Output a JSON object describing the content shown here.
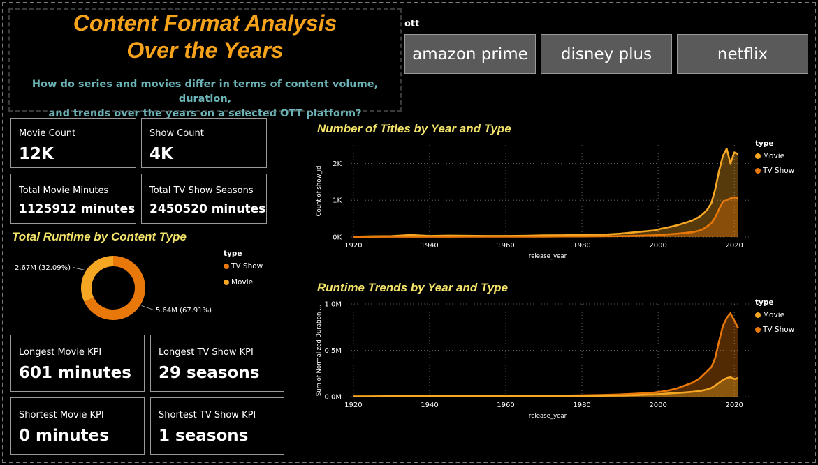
{
  "header": {
    "title_line1": "Content Format Analysis",
    "title_line2": "Over the Years",
    "subtitle_line1": "How do series and movies differ in terms of content volume, duration,",
    "subtitle_line2": "and trends over the years on a selected OTT platform?"
  },
  "ott_slicer": {
    "label": "ott",
    "options": [
      "amazon prime",
      "disney plus",
      "netflix"
    ]
  },
  "kpis": {
    "movie_count": {
      "label": "Movie Count",
      "value": "12K"
    },
    "show_count": {
      "label": "Show Count",
      "value": "4K"
    },
    "total_movie_minutes": {
      "label": "Total Movie Minutes",
      "value": "1125912 minutes"
    },
    "total_tv_show_seasons": {
      "label": "Total TV Show Seasons",
      "value": "2450520 minutes"
    },
    "longest_movie": {
      "label": "Longest Movie KPI",
      "value": "601 minutes"
    },
    "longest_tv_show": {
      "label": "Longest TV Show KPI",
      "value": "29 seasons"
    },
    "shortest_movie": {
      "label": "Shortest Movie KPI",
      "value": "0 minutes"
    },
    "shortest_tv_show": {
      "label": "Shortest TV Show KPI",
      "value": "1 seasons"
    }
  },
  "colors": {
    "movie": "#f5a623",
    "tv_show": "#e8780a",
    "accent_title": "#f7a21b",
    "section_title": "#f5e46a",
    "subtitle": "#6bb3b6"
  },
  "chart_data": [
    {
      "type": "pie",
      "title": "Total Runtime by Content Type",
      "legend_title": "type",
      "legend_position": "right",
      "slices": [
        {
          "name": "TV Show",
          "value": 5.64,
          "label": "5.64M (67.91%)",
          "color": "#e8780a"
        },
        {
          "name": "Movie",
          "value": 2.67,
          "label": "2.67M (32.09%)",
          "color": "#f5a623"
        }
      ]
    },
    {
      "type": "area",
      "title": "Number of Titles by Year and Type",
      "xlabel": "release_year",
      "ylabel": "Count of show_id",
      "xlim": [
        1918,
        2024
      ],
      "ylim": [
        0,
        2500
      ],
      "xticks": [
        1920,
        1940,
        1960,
        1980,
        2000,
        2020
      ],
      "xtick_labels": [
        "1920",
        "1940",
        "1960",
        "1980",
        "2000",
        "2020"
      ],
      "yticks": [
        0,
        1000,
        2000
      ],
      "ytick_labels": [
        "0K",
        "1K",
        "2K"
      ],
      "grid": true,
      "legend_title": "type",
      "legend_position": "right",
      "x": [
        1920,
        1925,
        1930,
        1935,
        1940,
        1945,
        1950,
        1955,
        1960,
        1965,
        1970,
        1975,
        1980,
        1985,
        1990,
        1993,
        1996,
        1999,
        2001,
        2003,
        2005,
        2007,
        2009,
        2011,
        2012,
        2013,
        2014,
        2015,
        2016,
        2017,
        2018,
        2019,
        2020,
        2021
      ],
      "series": [
        {
          "name": "Movie",
          "color": "#f5a623",
          "values": [
            10,
            20,
            25,
            55,
            30,
            40,
            35,
            30,
            30,
            35,
            45,
            50,
            60,
            60,
            90,
            120,
            150,
            180,
            230,
            270,
            320,
            380,
            450,
            560,
            650,
            760,
            930,
            1300,
            1800,
            2200,
            2400,
            2000,
            2300,
            2250
          ]
        },
        {
          "name": "TV Show",
          "color": "#e8780a",
          "values": [
            5,
            6,
            7,
            8,
            8,
            8,
            10,
            10,
            10,
            12,
            12,
            15,
            15,
            20,
            25,
            30,
            40,
            50,
            60,
            75,
            90,
            110,
            130,
            180,
            230,
            300,
            380,
            540,
            760,
            960,
            1000,
            1050,
            1080,
            1050
          ]
        }
      ]
    },
    {
      "type": "area",
      "title": "Runtime Trends by Year and Type",
      "xlabel": "release_year",
      "ylabel": "Sum of Normalized Duration ...",
      "xlim": [
        1918,
        2024
      ],
      "ylim": [
        0,
        1000000
      ],
      "xticks": [
        1920,
        1940,
        1960,
        1980,
        2000,
        2020
      ],
      "xtick_labels": [
        "1920",
        "1940",
        "1960",
        "1980",
        "2000",
        "2020"
      ],
      "yticks": [
        0,
        500000,
        1000000
      ],
      "ytick_labels": [
        "0.0M",
        "0.5M",
        "1.0M"
      ],
      "grid": true,
      "legend_title": "type",
      "legend_position": "right",
      "x": [
        1920,
        1925,
        1930,
        1935,
        1940,
        1945,
        1950,
        1955,
        1960,
        1965,
        1970,
        1975,
        1980,
        1985,
        1990,
        1993,
        1996,
        1999,
        2001,
        2003,
        2005,
        2007,
        2009,
        2011,
        2012,
        2013,
        2014,
        2015,
        2016,
        2017,
        2018,
        2019,
        2020,
        2021
      ],
      "series": [
        {
          "name": "Movie",
          "color": "#f5a623",
          "values": [
            2000,
            4000,
            5000,
            8000,
            5000,
            6000,
            6000,
            6000,
            6000,
            7000,
            8000,
            9000,
            10000,
            10000,
            13000,
            16000,
            20000,
            24000,
            30000,
            35000,
            40000,
            46000,
            52000,
            62000,
            70000,
            80000,
            95000,
            120000,
            150000,
            180000,
            200000,
            210000,
            190000,
            200000
          ]
        },
        {
          "name": "TV Show",
          "color": "#e8780a",
          "values": [
            3000,
            4000,
            5000,
            6000,
            6000,
            6000,
            7000,
            7000,
            8000,
            9000,
            10000,
            12000,
            14000,
            18000,
            24000,
            30000,
            36000,
            44000,
            55000,
            70000,
            90000,
            120000,
            150000,
            200000,
            240000,
            280000,
            320000,
            420000,
            600000,
            760000,
            850000,
            900000,
            820000,
            740000
          ]
        }
      ]
    }
  ]
}
